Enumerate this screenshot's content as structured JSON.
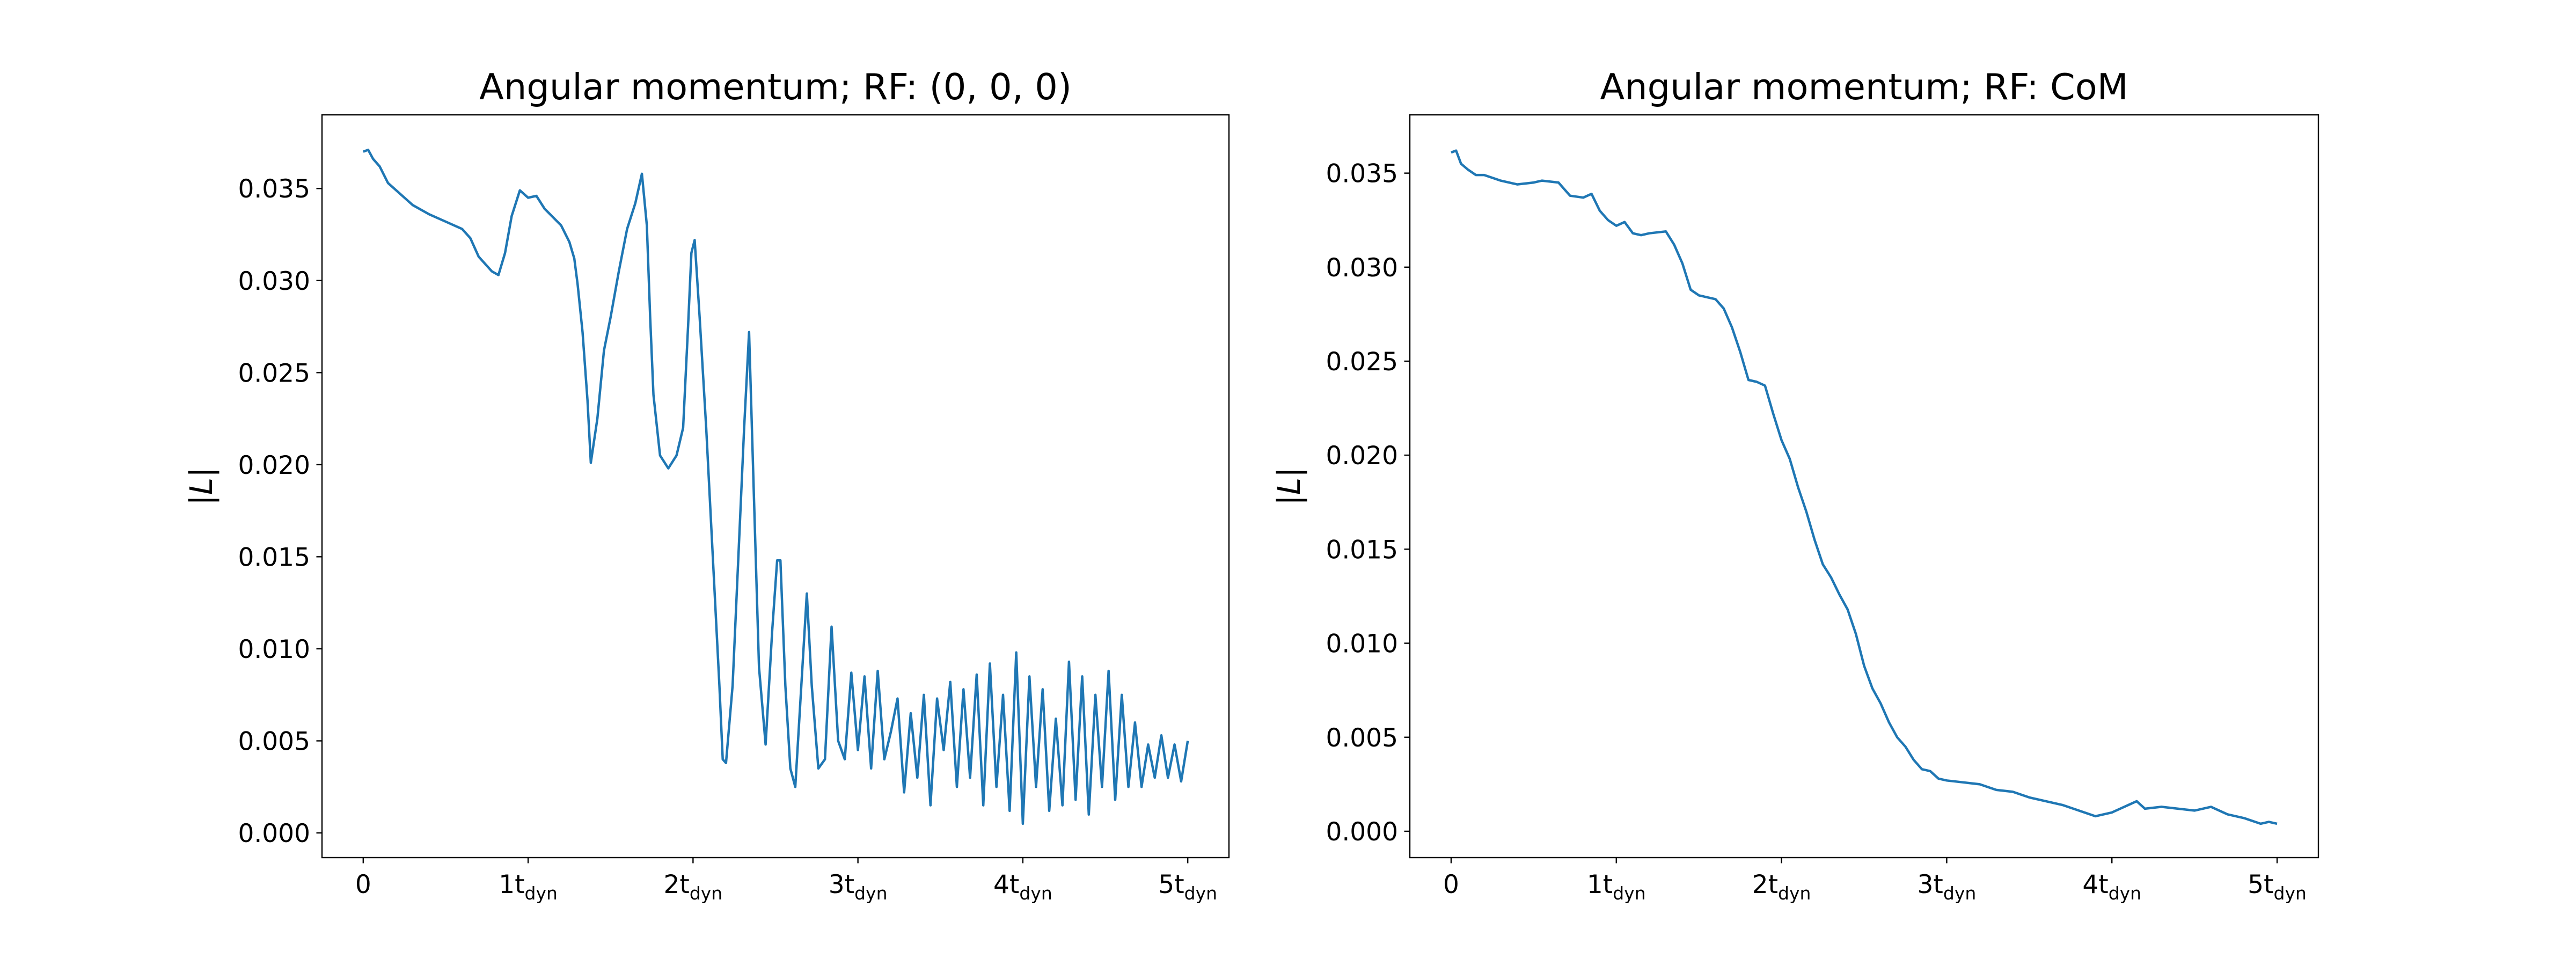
{
  "chart_data": [
    {
      "type": "line",
      "title": "Angular momentum; RF: (0, 0, 0)",
      "ylabel": "|L|",
      "color": "#1f77b4",
      "xlim": [
        -0.25,
        5.25
      ],
      "ylim": [
        -0.00134,
        0.039
      ],
      "xticks": [
        0,
        {
          "value": 1,
          "label": "1t",
          "subscript": "dyn"
        },
        {
          "value": 2,
          "label": "2t",
          "subscript": "dyn"
        },
        {
          "value": 3,
          "label": "3t",
          "subscript": "dyn"
        },
        {
          "value": 4,
          "label": "4t",
          "subscript": "dyn"
        },
        {
          "value": 5,
          "label": "5t",
          "subscript": "dyn"
        }
      ],
      "yticks": [
        {
          "value": 0,
          "label": "0.000"
        },
        0.005,
        {
          "value": 0.01,
          "label": "0.010"
        },
        0.015,
        {
          "value": 0.02,
          "label": "0.020"
        },
        0.025,
        {
          "value": 0.03,
          "label": "0.030"
        },
        0.035
      ],
      "x": [
        0,
        0.03,
        0.06,
        0.1,
        0.15,
        0.2,
        0.3,
        0.4,
        0.5,
        0.6,
        0.65,
        0.7,
        0.78,
        0.82,
        0.86,
        0.9,
        0.95,
        1.0,
        1.05,
        1.1,
        1.2,
        1.25,
        1.28,
        1.3,
        1.33,
        1.36,
        1.38,
        1.42,
        1.46,
        1.5,
        1.55,
        1.6,
        1.65,
        1.69,
        1.72,
        1.74,
        1.76,
        1.8,
        1.85,
        1.9,
        1.94,
        1.97,
        1.99,
        2.01,
        2.04,
        2.08,
        2.12,
        2.16,
        2.18,
        2.2,
        2.24,
        2.28,
        2.31,
        2.34,
        2.37,
        2.4,
        2.44,
        2.48,
        2.51,
        2.53,
        2.56,
        2.59,
        2.62,
        2.65,
        2.69,
        2.72,
        2.76,
        2.8,
        2.84,
        2.88,
        2.92,
        2.96,
        3.0,
        3.04,
        3.08,
        3.12,
        3.16,
        3.2,
        3.24,
        3.28,
        3.32,
        3.36,
        3.4,
        3.44,
        3.48,
        3.52,
        3.56,
        3.6,
        3.64,
        3.68,
        3.72,
        3.76,
        3.8,
        3.84,
        3.88,
        3.92,
        3.96,
        4.0,
        4.04,
        4.08,
        4.12,
        4.16,
        4.2,
        4.24,
        4.28,
        4.32,
        4.36,
        4.4,
        4.44,
        4.48,
        4.52,
        4.56,
        4.6,
        4.64,
        4.68,
        4.72,
        4.76,
        4.8,
        4.84,
        4.88,
        4.92,
        4.96,
        5.0
      ],
      "values": [
        0.037,
        0.0371,
        0.0366,
        0.0362,
        0.0353,
        0.0349,
        0.0341,
        0.0336,
        0.0332,
        0.0328,
        0.0323,
        0.0313,
        0.0305,
        0.0303,
        0.0315,
        0.0335,
        0.0349,
        0.0345,
        0.0346,
        0.0339,
        0.033,
        0.0321,
        0.0312,
        0.0298,
        0.0272,
        0.0235,
        0.0201,
        0.0225,
        0.0262,
        0.028,
        0.0305,
        0.0328,
        0.0342,
        0.0358,
        0.033,
        0.028,
        0.0238,
        0.0205,
        0.0198,
        0.0205,
        0.022,
        0.0275,
        0.0315,
        0.0322,
        0.028,
        0.022,
        0.015,
        0.008,
        0.004,
        0.0038,
        0.008,
        0.016,
        0.022,
        0.0272,
        0.018,
        0.009,
        0.0048,
        0.011,
        0.0148,
        0.0148,
        0.008,
        0.0035,
        0.0025,
        0.007,
        0.013,
        0.008,
        0.0035,
        0.004,
        0.0112,
        0.005,
        0.004,
        0.0087,
        0.0045,
        0.0085,
        0.0035,
        0.0088,
        0.004,
        0.0055,
        0.0073,
        0.0022,
        0.0065,
        0.003,
        0.0075,
        0.0015,
        0.0073,
        0.0045,
        0.0082,
        0.0025,
        0.0078,
        0.003,
        0.0086,
        0.0015,
        0.0092,
        0.0025,
        0.0075,
        0.0012,
        0.0098,
        0.0005,
        0.0085,
        0.0025,
        0.0078,
        0.0012,
        0.0062,
        0.0015,
        0.0093,
        0.0018,
        0.0085,
        0.001,
        0.0075,
        0.0025,
        0.0088,
        0.0018,
        0.0075,
        0.0025,
        0.006,
        0.0025,
        0.0048,
        0.003,
        0.0053,
        0.003,
        0.0048,
        0.0028,
        0.005
      ]
    },
    {
      "type": "line",
      "title": "Angular momentum; RF: CoM",
      "ylabel": "|L|",
      "color": "#1f77b4",
      "xlim": [
        -0.25,
        5.25
      ],
      "ylim": [
        -0.0014,
        0.0381
      ],
      "xticks": [
        0,
        {
          "value": 1,
          "label": "1t",
          "subscript": "dyn"
        },
        {
          "value": 2,
          "label": "2t",
          "subscript": "dyn"
        },
        {
          "value": 3,
          "label": "3t",
          "subscript": "dyn"
        },
        {
          "value": 4,
          "label": "4t",
          "subscript": "dyn"
        },
        {
          "value": 5,
          "label": "5t",
          "subscript": "dyn"
        }
      ],
      "yticks": [
        {
          "value": 0,
          "label": "0.000"
        },
        0.005,
        {
          "value": 0.01,
          "label": "0.010"
        },
        0.015,
        {
          "value": 0.02,
          "label": "0.020"
        },
        0.025,
        {
          "value": 0.03,
          "label": "0.030"
        },
        0.035
      ],
      "x": [
        0,
        0.03,
        0.06,
        0.1,
        0.15,
        0.2,
        0.3,
        0.4,
        0.5,
        0.55,
        0.65,
        0.72,
        0.8,
        0.85,
        0.9,
        0.95,
        1.0,
        1.05,
        1.1,
        1.15,
        1.2,
        1.3,
        1.35,
        1.4,
        1.45,
        1.5,
        1.55,
        1.6,
        1.65,
        1.7,
        1.75,
        1.8,
        1.85,
        1.9,
        1.95,
        2.0,
        2.05,
        2.1,
        2.15,
        2.2,
        2.25,
        2.3,
        2.35,
        2.4,
        2.45,
        2.5,
        2.55,
        2.6,
        2.65,
        2.7,
        2.75,
        2.8,
        2.85,
        2.9,
        2.95,
        3.0,
        3.1,
        3.2,
        3.3,
        3.4,
        3.5,
        3.6,
        3.7,
        3.8,
        3.9,
        4.0,
        4.1,
        4.15,
        4.2,
        4.3,
        4.4,
        4.5,
        4.6,
        4.7,
        4.8,
        4.9,
        4.95,
        5.0
      ],
      "values": [
        0.0361,
        0.0362,
        0.0355,
        0.0352,
        0.0349,
        0.0349,
        0.0346,
        0.0344,
        0.0345,
        0.0346,
        0.0345,
        0.0338,
        0.0337,
        0.0339,
        0.033,
        0.0325,
        0.0322,
        0.0324,
        0.0318,
        0.0317,
        0.0318,
        0.0319,
        0.0312,
        0.0302,
        0.0288,
        0.0285,
        0.0284,
        0.0283,
        0.0278,
        0.0268,
        0.0255,
        0.024,
        0.0239,
        0.0237,
        0.0222,
        0.0208,
        0.0198,
        0.0183,
        0.017,
        0.0155,
        0.0142,
        0.0135,
        0.0126,
        0.0118,
        0.0105,
        0.0088,
        0.0076,
        0.0068,
        0.0058,
        0.005,
        0.0045,
        0.0038,
        0.0033,
        0.0032,
        0.0028,
        0.0027,
        0.0026,
        0.0025,
        0.0022,
        0.0021,
        0.0018,
        0.0016,
        0.0014,
        0.0011,
        0.0008,
        0.001,
        0.0014,
        0.0016,
        0.0012,
        0.0013,
        0.0012,
        0.0011,
        0.0013,
        0.0009,
        0.0007,
        0.0004,
        0.0005,
        0.0004
      ]
    }
  ]
}
